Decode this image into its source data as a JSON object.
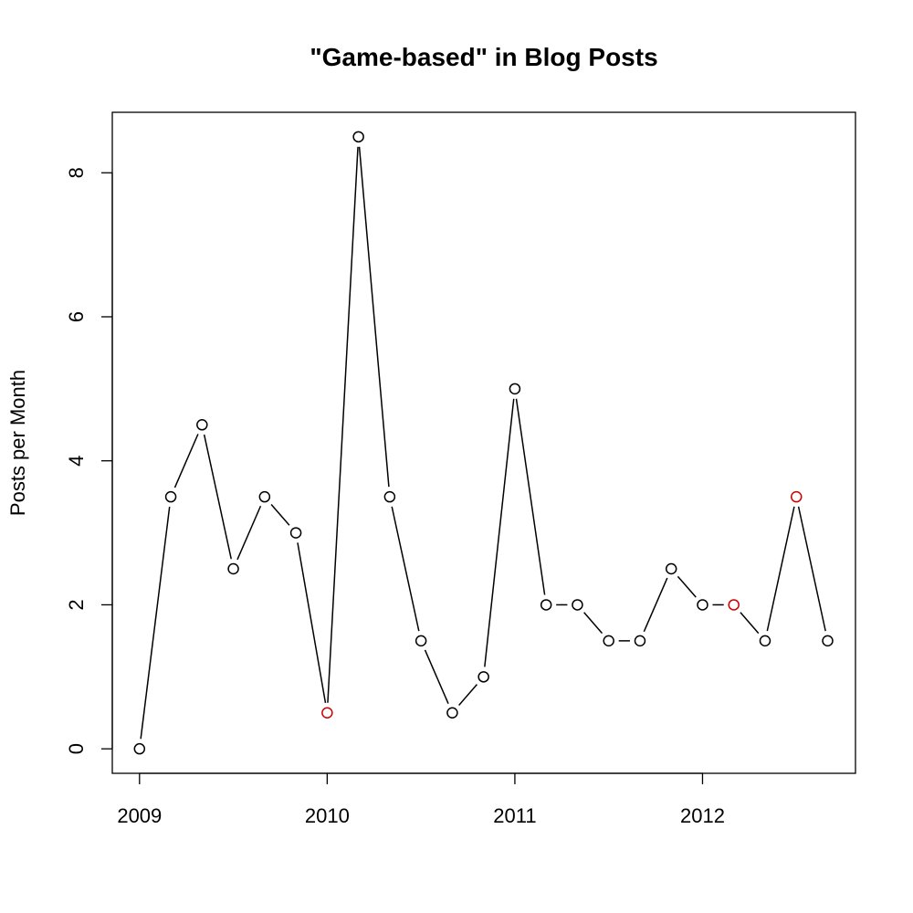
{
  "chart_data": {
    "type": "line",
    "title": "\"Game-based\" in Blog Posts",
    "xlabel": "",
    "ylabel": "Posts per Month",
    "xlim": [
      2008.855,
      2012.815
    ],
    "ylim": [
      -0.34,
      8.84
    ],
    "x_ticks": [
      2009,
      2010,
      2011,
      2012
    ],
    "x_tick_labels": [
      "2009",
      "2010",
      "2011",
      "2012"
    ],
    "y_ticks": [
      0,
      2,
      4,
      6,
      8
    ],
    "y_tick_labels": [
      "0",
      "2",
      "4",
      "6",
      "8"
    ],
    "grid": false,
    "line_color": "#000000",
    "marker_color": "#000000",
    "highlight_color": "#cc0000",
    "series": [
      {
        "x": [
          2009.0,
          2009.1667,
          2009.3333,
          2009.5,
          2009.6667,
          2009.8333,
          2010.0,
          2010.1667,
          2010.3333,
          2010.5,
          2010.6667,
          2010.8333,
          2011.0,
          2011.1667,
          2011.3333,
          2011.5,
          2011.6667,
          2011.8333,
          2012.0,
          2012.1667,
          2012.3333,
          2012.5,
          2012.6667
        ],
        "values": [
          0,
          3.5,
          4.5,
          2.5,
          3.5,
          3,
          0.5,
          8.5,
          3.5,
          1.5,
          0.5,
          1,
          5,
          2,
          2,
          1.5,
          1.5,
          2.5,
          2,
          2,
          1.5,
          3.5,
          1.5
        ],
        "highlighted": [
          false,
          false,
          false,
          false,
          false,
          false,
          true,
          false,
          false,
          false,
          false,
          false,
          false,
          false,
          false,
          false,
          false,
          false,
          false,
          true,
          false,
          true,
          false
        ]
      }
    ]
  }
}
